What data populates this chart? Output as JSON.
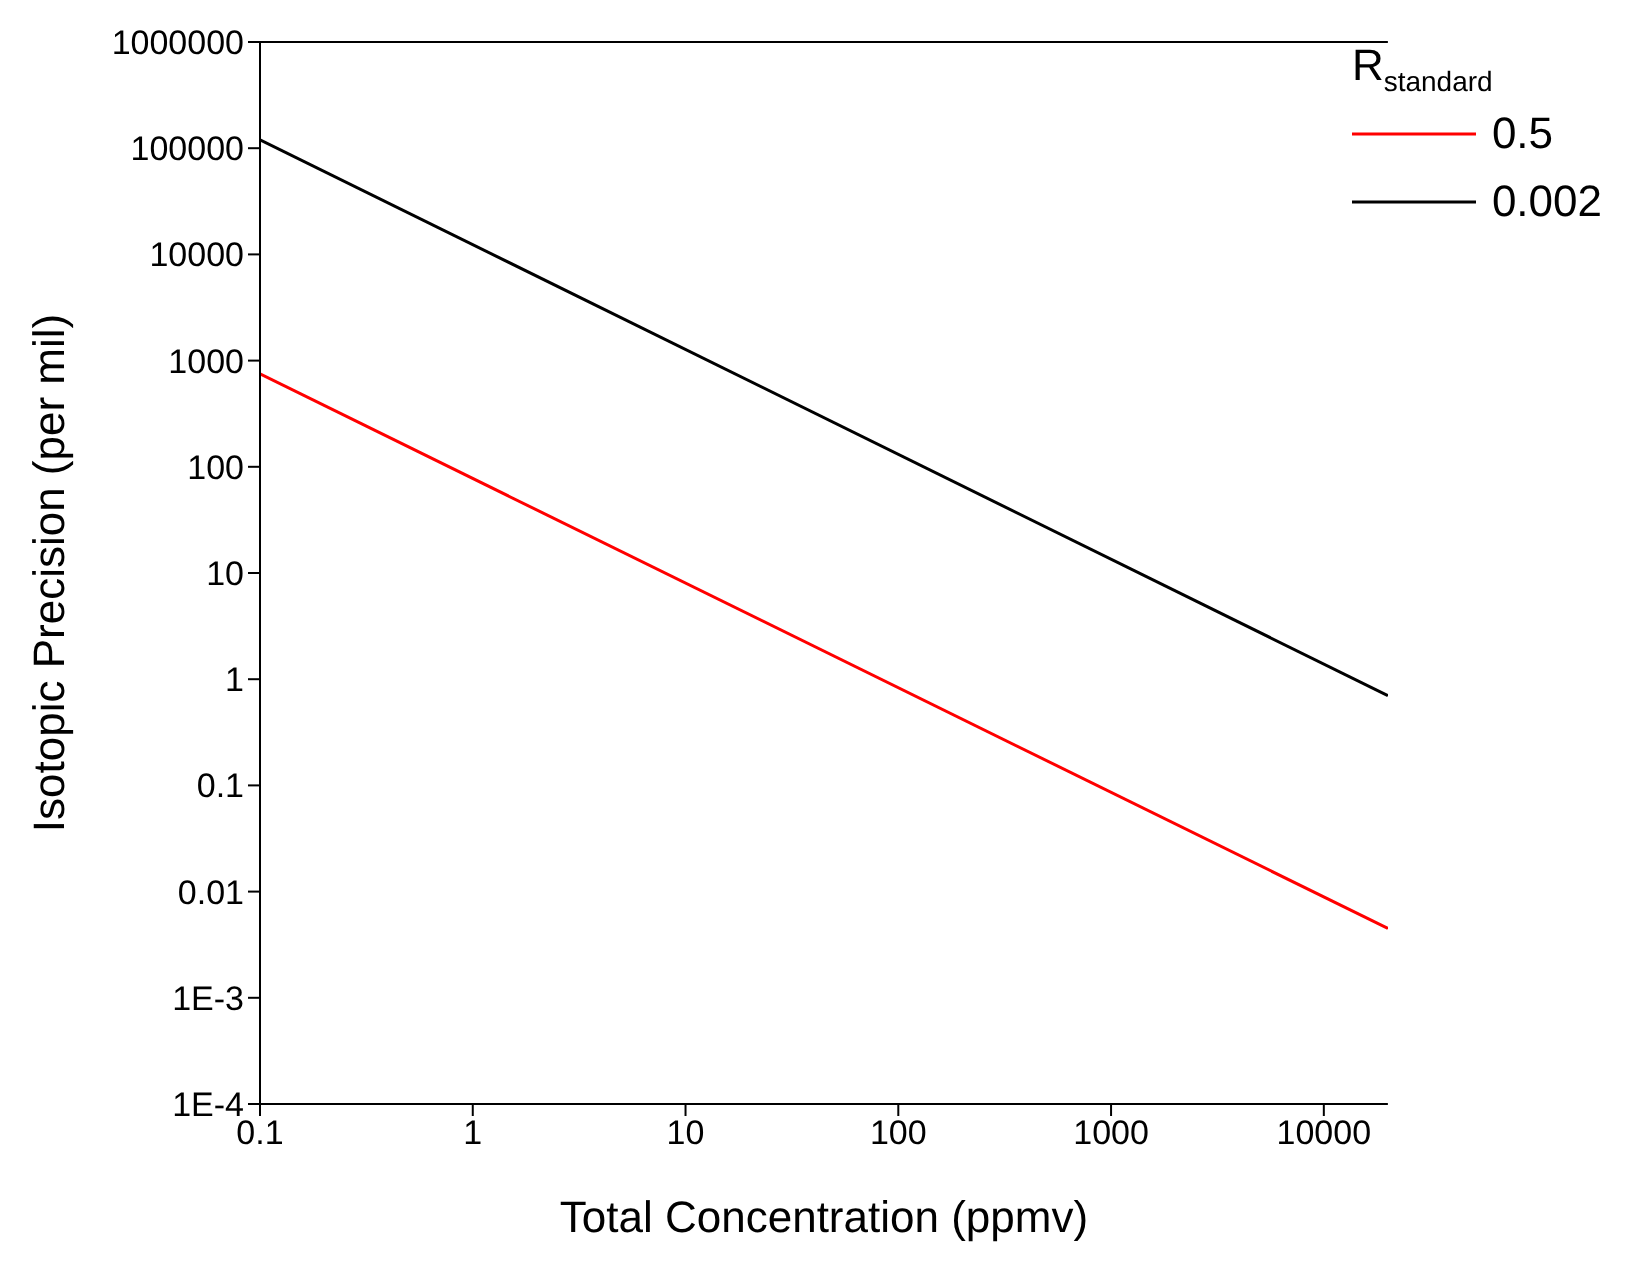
{
  "chart_data": {
    "type": "line",
    "xlabel": "Total Concentration (ppmv)",
    "ylabel": "Isotopic Precision (per mil)",
    "legend_title": "R$_{standard}$",
    "log": "xy",
    "legend": "top right",
    "marker": "none",
    "line_style": "solid",
    "x": [
      0.1,
      20000
    ],
    "xlim": [
      0.1,
      20000
    ],
    "xticks": [
      0.1,
      1,
      10,
      100,
      1000,
      10000
    ],
    "ylim": [
      0.0001,
      1000000
    ],
    "yticks": [
      {
        "value": 0.0001,
        "label": "1E-4"
      },
      {
        "value": 0.001,
        "label": "1E-3"
      },
      0.01,
      0.1,
      1,
      10,
      100,
      1000,
      10000,
      100000,
      1000000
    ],
    "series": [
      {
        "name": "0.5",
        "color": "#ff0000",
        "values": [
          750,
          0.0045
        ]
      },
      {
        "name": "0.002",
        "color": "#000000",
        "values": [
          120000,
          0.7
        ]
      }
    ]
  }
}
